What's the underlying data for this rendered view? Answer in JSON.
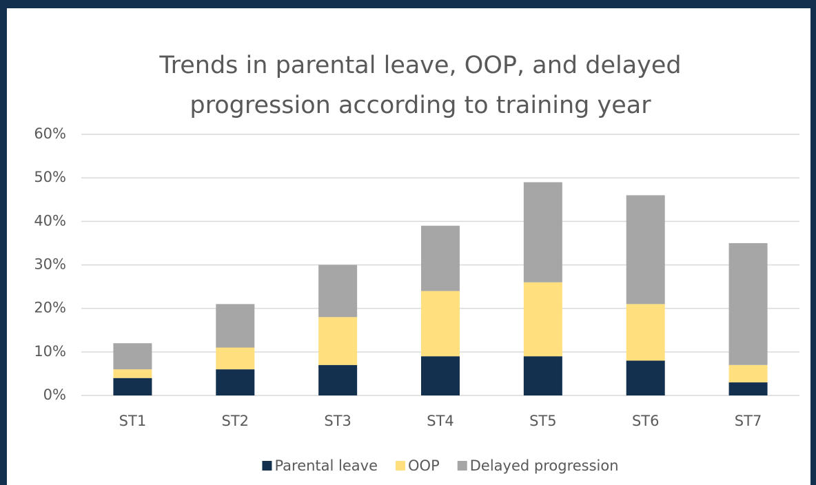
{
  "chart_data": {
    "type": "stacked_bar",
    "title": "Trends in parental leave, OOP, and delayed progression according to training year",
    "categories": [
      "ST1",
      "ST2",
      "ST3",
      "ST4",
      "ST5",
      "ST6",
      "ST7"
    ],
    "series": [
      {
        "name": "Parental leave",
        "color": "#14304f",
        "values": [
          4,
          6,
          7,
          9,
          9,
          8,
          3
        ]
      },
      {
        "name": "OOP",
        "color": "#ffdf7e",
        "values": [
          2,
          5,
          11,
          15,
          17,
          13,
          4
        ]
      },
      {
        "name": "Delayed progression",
        "color": "#a6a6a6",
        "values": [
          6,
          10,
          12,
          15,
          23,
          25,
          28
        ]
      }
    ],
    "ylim": [
      0,
      60
    ],
    "yticks": [
      {
        "value": 0,
        "label": "0%"
      },
      {
        "value": 10,
        "label": "10%"
      },
      {
        "value": 20,
        "label": "20%"
      },
      {
        "value": 30,
        "label": "30%"
      },
      {
        "value": 40,
        "label": "40%"
      },
      {
        "value": 50,
        "label": "50%"
      },
      {
        "value": 60,
        "label": "60%"
      }
    ],
    "grid": true,
    "legend": "bottom"
  }
}
